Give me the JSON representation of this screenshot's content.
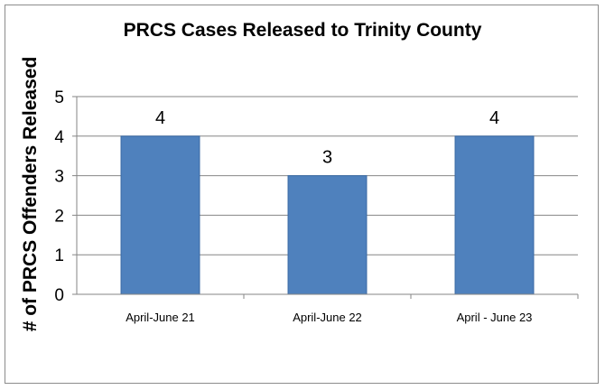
{
  "chart_data": {
    "type": "bar",
    "title": "PRCS Cases Released to Trinity County",
    "ylabel": "# of PRCS Offenders Released",
    "xlabel": "",
    "categories": [
      "April-June 21",
      "April-June 22",
      "April - June 23"
    ],
    "values": [
      4,
      3,
      4
    ],
    "data_labels": [
      "4",
      "3",
      "4"
    ],
    "y_ticks": [
      0,
      1,
      2,
      3,
      4,
      5
    ],
    "ylim": [
      0,
      5
    ],
    "grid": true,
    "legend": "none",
    "bar_color": "#4f81bd",
    "bar_border_color": "#3a6aa5",
    "grid_color": "#868686"
  }
}
